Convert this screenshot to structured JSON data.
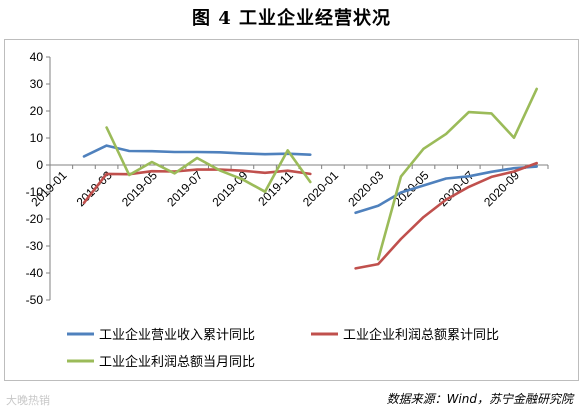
{
  "title": "图 4  工业企业经营状况",
  "source": "数据来源：Wind，苏宁金融研究院",
  "watermark": "大晚热销",
  "colors": {
    "blue": "#4F81BD",
    "red": "#C0504D",
    "green": "#9BBB59",
    "axis": "#808080"
  },
  "chart_data": {
    "type": "line",
    "categories": [
      "2019-01",
      "2019-02",
      "2019-03",
      "2019-04",
      "2019-05",
      "2019-06",
      "2019-07",
      "2019-08",
      "2019-09",
      "2019-10",
      "2019-11",
      "2019-12",
      "2020-01",
      "2020-02",
      "2020-03",
      "2020-04",
      "2020-05",
      "2020-06",
      "2020-07",
      "2020-08",
      "2020-09",
      "2020-10"
    ],
    "tick_labels": [
      "2019-01",
      "2019-03",
      "2019-05",
      "2019-07",
      "2019-09",
      "2019-11",
      "2020-01",
      "2020-03",
      "2020-05",
      "2020-07",
      "2020-09"
    ],
    "ylim": [
      -50,
      40
    ],
    "yticks": [
      40,
      30,
      20,
      10,
      0,
      -10,
      -20,
      -30,
      -40,
      -50
    ],
    "legend_position": "bottom",
    "series": [
      {
        "name": "工业企业营业收入累计同比",
        "color": "#4F81BD",
        "values": [
          null,
          3.2,
          7.2,
          5.2,
          5.1,
          4.8,
          4.8,
          4.7,
          4.3,
          4.0,
          4.2,
          3.8,
          null,
          -17.7,
          -15.1,
          -10.2,
          -7.6,
          -5.0,
          -4.2,
          -2.5,
          -1.2,
          -0.6
        ]
      },
      {
        "name": "工业企业利润总额累计同比",
        "color": "#C0504D",
        "values": [
          null,
          -14.0,
          -3.3,
          -3.4,
          -2.3,
          -2.4,
          -1.7,
          -1.7,
          -2.1,
          -2.9,
          -2.1,
          -3.3,
          null,
          -38.3,
          -36.7,
          -27.4,
          -19.3,
          -12.8,
          -8.1,
          -4.4,
          -2.4,
          0.7
        ]
      },
      {
        "name": "工业企业利润总额当月同比",
        "color": "#9BBB59",
        "values": [
          null,
          null,
          13.9,
          -3.7,
          1.1,
          -3.1,
          2.6,
          -2.0,
          -5.3,
          -9.9,
          5.4,
          -6.3,
          null,
          null,
          -34.9,
          -4.3,
          6.0,
          11.5,
          19.6,
          19.1,
          10.1,
          28.2
        ]
      }
    ]
  }
}
